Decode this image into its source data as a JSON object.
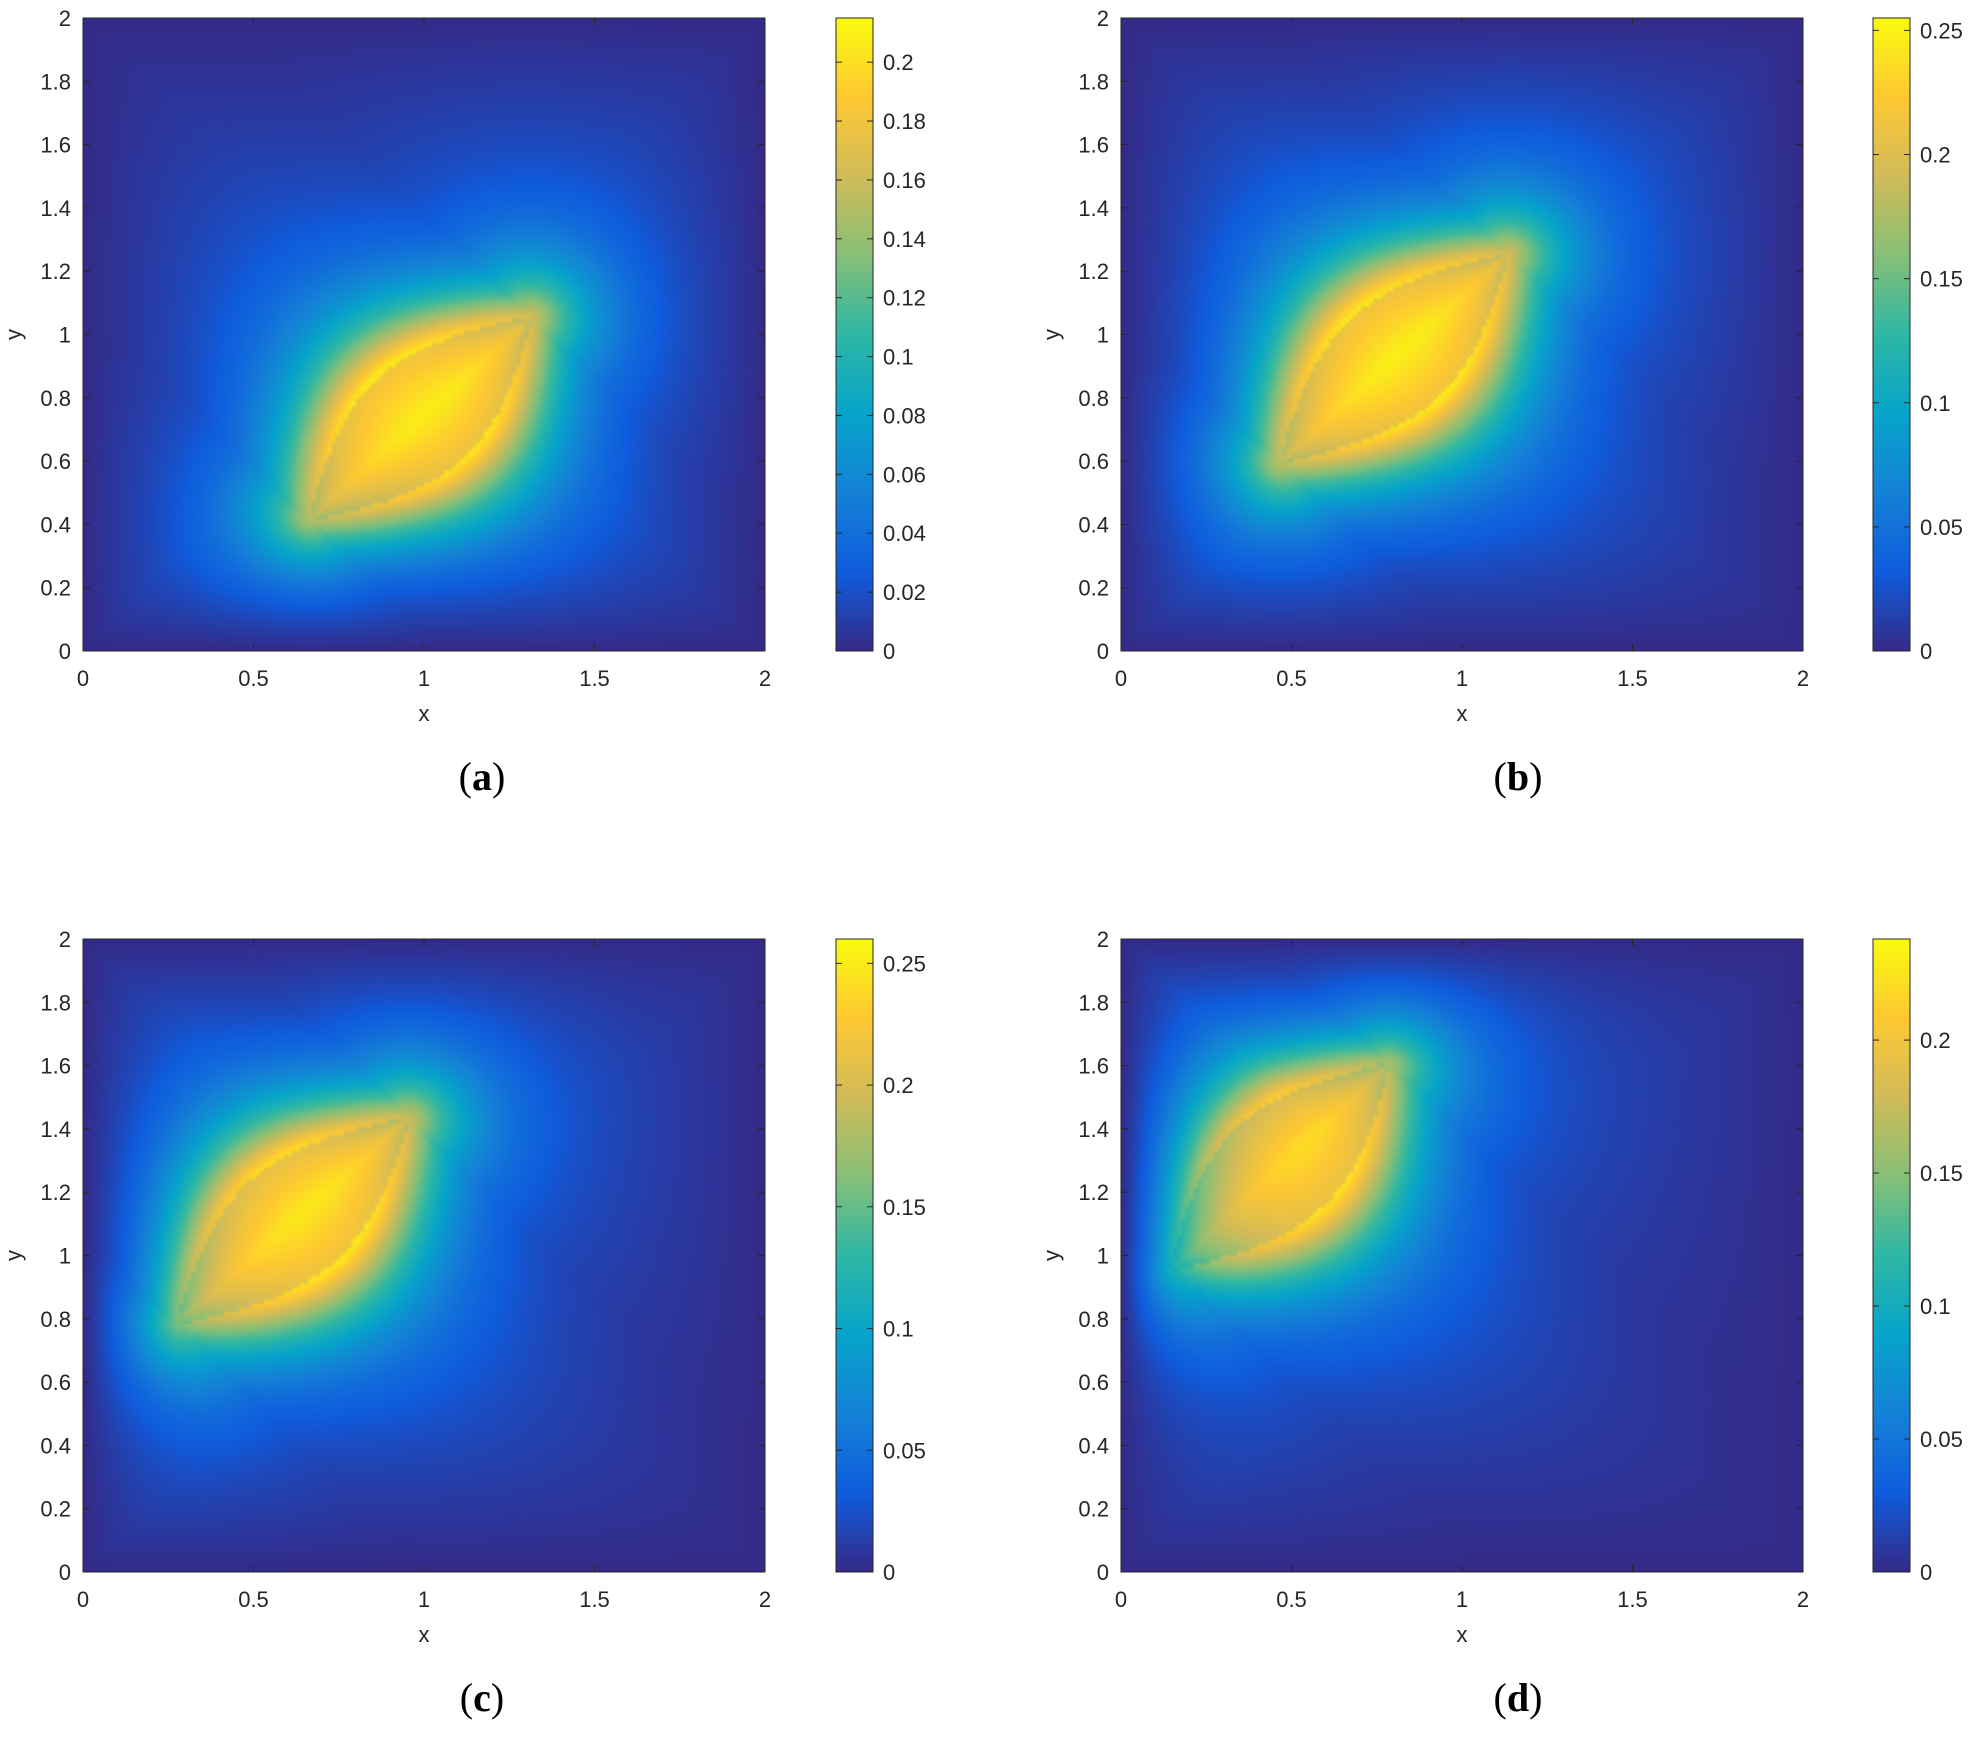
{
  "chart_data": [
    {
      "type": "heatmap",
      "caption": "a",
      "xlabel": "x",
      "ylabel": "y",
      "xlim": [
        0,
        2
      ],
      "ylim": [
        0,
        2
      ],
      "xticks": [
        "0",
        "0.5",
        "1",
        "1.5",
        "2"
      ],
      "yticks": [
        "0",
        "0.2",
        "0.4",
        "0.6",
        "0.8",
        "1",
        "1.2",
        "1.4",
        "1.6",
        "1.8",
        "2"
      ],
      "field": {
        "peak_start": [
          0.67,
          0.42
        ],
        "peak_end": [
          1.31,
          1.05
        ],
        "max": 0.215
      },
      "colorbar": {
        "min": 0,
        "max": 0.215,
        "ticks": [
          0,
          0.02,
          0.04,
          0.06,
          0.08,
          0.1,
          0.12,
          0.14,
          0.16,
          0.18,
          0.2
        ],
        "labels": [
          "0",
          "0.02",
          "0.04",
          "0.06",
          "0.08",
          "0.1",
          "0.12",
          "0.14",
          "0.16",
          "0.18",
          "0.2"
        ]
      }
    },
    {
      "type": "heatmap",
      "caption": "b",
      "xlabel": "x",
      "ylabel": "y",
      "xlim": [
        0,
        2
      ],
      "ylim": [
        0,
        2
      ],
      "xticks": [
        "0",
        "0.5",
        "1",
        "1.5",
        "2"
      ],
      "yticks": [
        "0",
        "0.2",
        "0.4",
        "0.6",
        "0.8",
        "1",
        "1.2",
        "1.4",
        "1.6",
        "1.8",
        "2"
      ],
      "field": {
        "peak_start": [
          0.47,
          0.6
        ],
        "peak_end": [
          1.13,
          1.25
        ],
        "max": 0.255
      },
      "colorbar": {
        "min": 0,
        "max": 0.255,
        "ticks": [
          0,
          0.05,
          0.1,
          0.15,
          0.2,
          0.25
        ],
        "labels": [
          "0",
          "0.05",
          "0.1",
          "0.15",
          "0.2",
          "0.25"
        ]
      }
    },
    {
      "type": "heatmap",
      "caption": "c",
      "xlabel": "x",
      "ylabel": "y",
      "xlim": [
        0,
        2
      ],
      "ylim": [
        0,
        2
      ],
      "xticks": [
        "0",
        "0.5",
        "1",
        "1.5",
        "2"
      ],
      "yticks": [
        "0",
        "0.2",
        "0.4",
        "0.6",
        "0.8",
        "1",
        "1.2",
        "1.4",
        "1.6",
        "1.8",
        "2"
      ],
      "field": {
        "peak_start": [
          0.28,
          0.79
        ],
        "peak_end": [
          0.95,
          1.43
        ],
        "max": 0.26
      },
      "colorbar": {
        "min": 0,
        "max": 0.26,
        "ticks": [
          0,
          0.05,
          0.1,
          0.15,
          0.2,
          0.25
        ],
        "labels": [
          "0",
          "0.05",
          "0.1",
          "0.15",
          "0.2",
          "0.25"
        ]
      }
    },
    {
      "type": "heatmap",
      "caption": "d",
      "xlabel": "x",
      "ylabel": "y",
      "xlim": [
        0,
        2
      ],
      "ylim": [
        0,
        2
      ],
      "xticks": [
        "0",
        "0.5",
        "1",
        "1.5",
        "2"
      ],
      "yticks": [
        "0",
        "0.2",
        "0.4",
        "0.6",
        "0.8",
        "1",
        "1.2",
        "1.4",
        "1.6",
        "1.8",
        "2"
      ],
      "field": {
        "peak_start": [
          0.15,
          0.96
        ],
        "peak_end": [
          0.78,
          1.6
        ],
        "max": 0.238
      },
      "colorbar": {
        "min": 0,
        "max": 0.238,
        "ticks": [
          0,
          0.05,
          0.1,
          0.15,
          0.2
        ],
        "labels": [
          "0",
          "0.05",
          "0.1",
          "0.15",
          "0.2"
        ]
      }
    }
  ]
}
